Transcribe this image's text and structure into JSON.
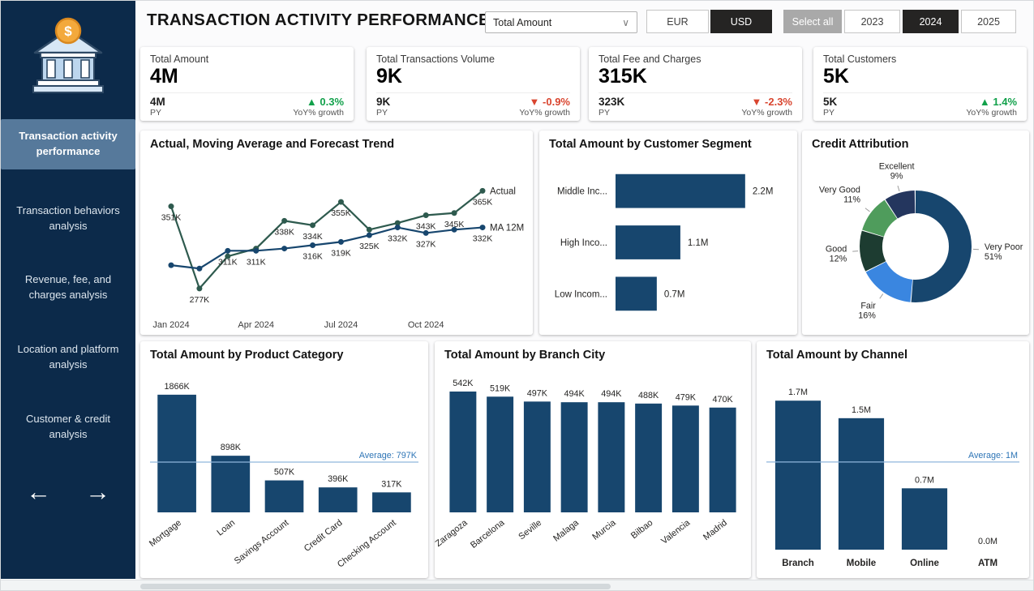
{
  "header": {
    "title": "TRANSACTION ACTIVITY PERFORMANCE",
    "measure_dropdown": {
      "value": "Total Amount",
      "chevron_icon": "∨"
    },
    "currency_buttons": [
      {
        "label": "EUR",
        "selected": false
      },
      {
        "label": "USD",
        "selected": true
      }
    ],
    "year_buttons": [
      {
        "label": "Select all",
        "style": "gray",
        "selected": false
      },
      {
        "label": "2023",
        "selected": false
      },
      {
        "label": "2024",
        "selected": true
      },
      {
        "label": "2025",
        "selected": false
      }
    ]
  },
  "sidebar": {
    "logo_symbol": "$",
    "items": [
      {
        "label": "Transaction activity performance",
        "active": true
      },
      {
        "label": "Transaction behaviors analysis",
        "active": false
      },
      {
        "label": "Revenue, fee, and charges analysis",
        "active": false
      },
      {
        "label": "Location and platform analysis",
        "active": false
      },
      {
        "label": "Customer & credit analysis",
        "active": false
      }
    ],
    "nav_arrows": {
      "prev": "←",
      "next": "→"
    }
  },
  "kpis": [
    {
      "title": "Total Amount",
      "value": "4M",
      "py_value": "4M",
      "py_label": "PY",
      "delta": "▲ 0.3%",
      "direction": "up",
      "delta_label": "YoY% growth"
    },
    {
      "title": "Total Transactions Volume",
      "value": "9K",
      "py_value": "9K",
      "py_label": "PY",
      "delta": "▼ -0.9%",
      "direction": "down",
      "delta_label": "YoY% growth"
    },
    {
      "title": "Total Fee and Charges",
      "value": "315K",
      "py_value": "323K",
      "py_label": "PY",
      "delta": "▼ -2.3%",
      "direction": "down",
      "delta_label": "YoY% growth"
    },
    {
      "title": "Total Customers",
      "value": "5K",
      "py_value": "5K",
      "py_label": "PY",
      "delta": "▲ 1.4%",
      "direction": "up",
      "delta_label": "YoY% growth"
    }
  ],
  "chart_data": [
    {
      "type": "line",
      "title": "Actual, Moving Average and Forecast Trend",
      "x": [
        "Jan 2024",
        "Feb 2024",
        "Mar 2024",
        "Apr 2024",
        "May 2024",
        "Jun 2024",
        "Jul 2024",
        "Aug 2024",
        "Sep 2024",
        "Oct 2024",
        "Nov 2024",
        "Dec 2024"
      ],
      "x_tick_idx": [
        0,
        3,
        6,
        9
      ],
      "x_tick_labels": [
        "Jan 2024",
        "Apr 2024",
        "Jul 2024",
        "Oct 2024"
      ],
      "ylim": [
        255,
        385
      ],
      "unit": "K",
      "legend_position": "line-end",
      "series": [
        {
          "name": "Actual",
          "color": "#2e5a4e",
          "values": [
            351,
            277,
            306,
            313,
            338,
            334,
            355,
            330,
            336,
            343,
            345,
            365
          ],
          "labels": [
            "351K",
            "277K",
            "",
            "",
            "338K",
            "334K",
            "355K",
            "",
            "",
            "343K",
            "345K",
            "365K"
          ],
          "label_below": [
            true,
            true,
            true,
            true,
            true,
            true,
            true,
            true,
            true,
            true,
            true,
            true
          ]
        },
        {
          "name": "MA 12M",
          "color": "#17466e",
          "values": [
            298,
            295,
            311,
            311,
            313,
            316,
            319,
            325,
            332,
            327,
            330,
            332
          ],
          "labels": [
            "",
            "",
            "311K",
            "311K",
            "",
            "316K",
            "319K",
            "325K",
            "332K",
            "327K",
            "",
            "332K"
          ],
          "label_below": [
            true,
            true,
            true,
            true,
            true,
            true,
            true,
            true,
            true,
            true,
            true,
            true
          ]
        }
      ]
    },
    {
      "type": "bar",
      "orientation": "horizontal",
      "title": "Total Amount by Customer Segment",
      "categories": [
        "Middle Inc...",
        "High Inco...",
        "Low Incom..."
      ],
      "values": [
        2.2,
        1.1,
        0.7
      ],
      "value_labels": [
        "2.2M",
        "1.1M",
        "0.7M"
      ],
      "xmax": 2.45,
      "color": "#17466e"
    },
    {
      "type": "donut",
      "title": "Credit Attribution",
      "slices": [
        {
          "label": "Very Poor",
          "pct": 51,
          "color": "#17466e"
        },
        {
          "label": "Fair",
          "pct": 16,
          "color": "#3a86e0"
        },
        {
          "label": "Good",
          "pct": 12,
          "color": "#1d3c31"
        },
        {
          "label": "Very Good",
          "pct": 11,
          "color": "#4f9c5c"
        },
        {
          "label": "Excellent",
          "pct": 9,
          "color": "#24365e"
        }
      ]
    },
    {
      "type": "bar",
      "orientation": "vertical",
      "title": "Total Amount by Product Category",
      "categories": [
        "Mortgage",
        "Loan",
        "Savings Account",
        "Credit Card",
        "Checking Account"
      ],
      "values": [
        1866,
        898,
        507,
        396,
        317
      ],
      "value_labels": [
        "1866K",
        "898K",
        "507K",
        "396K",
        "317K"
      ],
      "ymax": 1980,
      "rotate_labels": true,
      "average": {
        "value": 797,
        "label": "Average: 797K",
        "color": "#2e75b6"
      },
      "color": "#17466e"
    },
    {
      "type": "bar",
      "orientation": "vertical",
      "title": "Total Amount by Branch City",
      "categories": [
        "Zaragoza",
        "Barcelona",
        "Seville",
        "Malaga",
        "Murcia",
        "Bilbao",
        "Valencia",
        "Madrid"
      ],
      "values": [
        542,
        519,
        497,
        494,
        494,
        488,
        479,
        470
      ],
      "value_labels": [
        "542K",
        "519K",
        "497K",
        "494K",
        "494K",
        "488K",
        "479K",
        "470K"
      ],
      "ymax": 560,
      "rotate_labels": true,
      "color": "#17466e"
    },
    {
      "type": "bar",
      "orientation": "vertical",
      "title": "Total Amount by Channel",
      "categories": [
        "Branch",
        "Mobile",
        "Online",
        "ATM"
      ],
      "values": [
        1.7,
        1.5,
        0.7,
        0.0
      ],
      "value_labels": [
        "1.7M",
        "1.5M",
        "0.7M",
        "0.0M"
      ],
      "ymax": 1.85,
      "rotate_labels": false,
      "bold_categories": true,
      "average": {
        "value": 1.0,
        "label": "Average: 1M",
        "color": "#2e75b6"
      },
      "color": "#17466e"
    }
  ]
}
